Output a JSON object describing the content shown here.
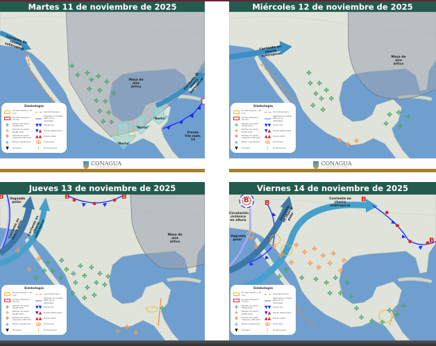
{
  "panels": [
    {
      "title": "Martes 11 de noviembre de 2025",
      "labels": {
        "jet": "Corriente en chorro subtropical",
        "jet2": "Corriente en chorro subtropical",
        "arctic": "Masa de aire ártico",
        "norte1": "\"Norte\"",
        "norte2": "\"Norte\"",
        "norte3": "\"Norte\"",
        "front": "Frente frío núm. 13"
      }
    },
    {
      "title": "Miércoles 12 de noviembre de 2025",
      "labels": {
        "jet": "Corriente en chorro subtropical",
        "arctic": "Masa de aire ártico"
      }
    },
    {
      "title": "Jueves 13 de noviembre de 2025",
      "labels": {
        "vaguada": "Vaguada polar",
        "jet": "Corriente en chorro polar",
        "jet2": "Corriente en chorro subtropical",
        "arctic": "Masa de aire ártico",
        "b1": "B",
        "b2": "B",
        "b3": "B"
      }
    },
    {
      "title": "Viernes 14 de noviembre de 2025",
      "labels": {
        "circ": "Circulación ciclónica en altura",
        "vaguada": "Vaguada polar",
        "jet": "Corriente en chorro subtropical",
        "jet2": "Corriente en chorro polar",
        "b1": "B",
        "b2": "B",
        "b3": "B",
        "b4": "B"
      }
    }
  ],
  "legend": {
    "title": "Simbología",
    "items": [
      {
        "label": "Lluvias fuertes > 25 mm",
        "icon": "yellow-outline"
      },
      {
        "label": "Surco/línea seca",
        "icon": "orange-dash"
      },
      {
        "label": "Lluvias intensas > 75 mm",
        "icon": "red-outline"
      },
      {
        "label": "Vaguada en niveles altos de la atmósfera",
        "icon": "lavender-line"
      },
      {
        "label": "Rachas de viento 40-60 km/h",
        "icon": "green-wind"
      },
      {
        "label": "Frente frío",
        "icon": "cold-front"
      },
      {
        "label": "Rachas de viento 60-80 km/h",
        "icon": "orange-wind"
      },
      {
        "label": "Frente estacionario",
        "icon": "stationary-front"
      },
      {
        "label": "Rachas de viento mayores a 80 km/h",
        "icon": "red-wind"
      },
      {
        "label": "Frente cálido",
        "icon": "warm-front"
      },
      {
        "label": "Nieve o aguanieve",
        "icon": "snowflake"
      },
      {
        "label": "Línea seca",
        "icon": "dry-line"
      },
      {
        "label": "Tornados",
        "icon": "tornado"
      },
      {
        "label": "Onda tropical",
        "icon": "tropical-wave"
      }
    ]
  },
  "footer": {
    "logo_text": "CONAGUA",
    "logo_sub": "COMISIÓN NACIONAL DEL AGUA"
  },
  "colors": {
    "header": "#235b4e",
    "gold": "#a57f2c",
    "ocean": "#6f9fcf",
    "land": "#dfe3d9",
    "cold_front": "#1a2cff",
    "warm_front": "#e2222a",
    "wind_green": "#4aa56a",
    "wind_orange": "#ef9a5a",
    "arctic_mass": "#9aa3b0"
  }
}
